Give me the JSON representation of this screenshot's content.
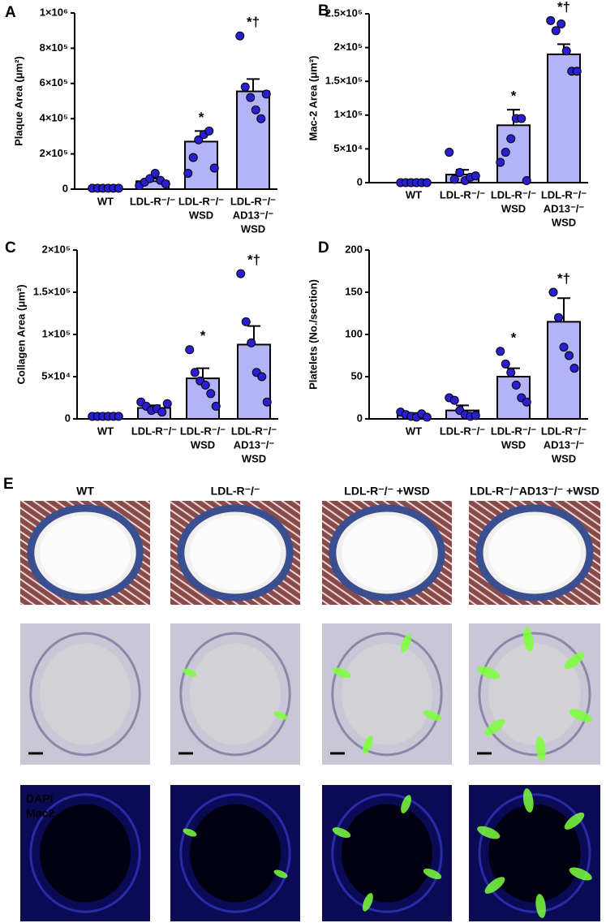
{
  "chart_data": [
    {
      "type": "bar",
      "panel": "A",
      "ylabel": "Plaque Area (μm²)",
      "categories": [
        [
          "WT"
        ],
        [
          "LDL-R⁻/⁻"
        ],
        [
          "LDL-R⁻/⁻",
          "WSD"
        ],
        [
          "LDL-R⁻/⁻",
          "AD13⁻/⁻",
          "WSD"
        ]
      ],
      "values": [
        5000,
        45000,
        270000,
        555000
      ],
      "errors": [
        3000,
        15000,
        60000,
        70000
      ],
      "points": [
        [
          5000,
          5000,
          5000,
          5000,
          5000,
          5000
        ],
        [
          20000,
          40000,
          60000,
          90000,
          50000,
          30000
        ],
        [
          90000,
          180000,
          280000,
          310000,
          330000,
          120000
        ],
        [
          870000,
          580000,
          520000,
          450000,
          400000,
          540000
        ]
      ],
      "annotations": [
        null,
        null,
        "*",
        "*†"
      ],
      "color": "#b3b3f5",
      "point_color": "#2a1fd0",
      "ylim": [
        0,
        1000000
      ],
      "yticks": [
        0,
        {
          "value": 200000,
          "label": "2×10⁵"
        },
        {
          "value": 400000,
          "label": "4×10⁵"
        },
        {
          "value": 600000,
          "label": "6×10⁵"
        },
        {
          "value": 800000,
          "label": "8×10⁵"
        },
        {
          "value": 1000000,
          "label": "1×10⁶"
        }
      ]
    },
    {
      "type": "bar",
      "panel": "B",
      "ylabel": "Mac-2 Area (μm²)",
      "categories": [
        [
          "WT"
        ],
        [
          "LDL-R⁻/⁻"
        ],
        [
          "LDL-R⁻/⁻",
          "WSD"
        ],
        [
          "LDL-R⁻/⁻",
          "AD13⁻/⁻",
          "WSD"
        ]
      ],
      "values": [
        1000,
        12000,
        85000,
        190000
      ],
      "errors": [
        500,
        7000,
        23000,
        15000
      ],
      "points": [
        [
          0,
          0,
          0,
          0,
          0,
          0
        ],
        [
          45000,
          5000,
          15000,
          3000,
          8000,
          10000
        ],
        [
          30000,
          45000,
          65000,
          95000,
          95000,
          3000
        ],
        [
          240000,
          225000,
          235000,
          195000,
          165000,
          165000
        ]
      ],
      "annotations": [
        null,
        null,
        "*",
        "*†"
      ],
      "color": "#b3b3f5",
      "point_color": "#2a1fd0",
      "ylim": [
        0,
        250000
      ],
      "yticks": [
        0,
        {
          "value": 50000,
          "label": "5×10⁴"
        },
        {
          "value": 100000,
          "label": "1×10⁵"
        },
        {
          "value": 150000,
          "label": "1.5×10⁵"
        },
        {
          "value": 200000,
          "label": "2×10⁵"
        },
        {
          "value": 250000,
          "label": "2.5×10⁵"
        }
      ]
    },
    {
      "type": "bar",
      "panel": "C",
      "ylabel": "Collagen Area  (μm²)",
      "categories": [
        [
          "WT"
        ],
        [
          "LDL-R⁻/⁻"
        ],
        [
          "LDL-R⁻/⁻",
          "WSD"
        ],
        [
          "LDL-R⁻/⁻",
          "AD13⁻/⁻",
          "WSD"
        ]
      ],
      "values": [
        3000,
        13000,
        48000,
        88000
      ],
      "errors": [
        500,
        3000,
        12000,
        22000
      ],
      "points": [
        [
          3000,
          3000,
          3000,
          3000,
          3000,
          3000
        ],
        [
          20000,
          15000,
          10000,
          12000,
          8000,
          18000
        ],
        [
          82000,
          55000,
          45000,
          40000,
          30000,
          15000
        ],
        [
          172000,
          115000,
          90000,
          55000,
          50000,
          20000
        ]
      ],
      "annotations": [
        null,
        null,
        "*",
        "*†"
      ],
      "color": "#b3b3f5",
      "point_color": "#2a1fd0",
      "ylim": [
        0,
        200000
      ],
      "yticks": [
        0,
        {
          "value": 50000,
          "label": "5×10⁴"
        },
        {
          "value": 100000,
          "label": "1×10⁵"
        },
        {
          "value": 150000,
          "label": "1.5×10⁵"
        },
        {
          "value": 200000,
          "label": "2×10⁵"
        }
      ]
    },
    {
      "type": "bar",
      "panel": "D",
      "ylabel": "Platelets (No./section)",
      "categories": [
        [
          "WT"
        ],
        [
          "LDL-R⁻/⁻"
        ],
        [
          "LDL-R⁻/⁻",
          "WSD"
        ],
        [
          "LDL-R⁻/⁻",
          "AD13⁻/⁻",
          "WSD"
        ]
      ],
      "values": [
        4,
        10,
        50,
        115
      ],
      "errors": [
        3,
        6,
        10,
        28
      ],
      "points": [
        [
          8,
          5,
          3,
          2,
          6,
          2
        ],
        [
          25,
          22,
          10,
          5,
          3,
          4
        ],
        [
          80,
          65,
          55,
          40,
          25,
          20
        ],
        [
          150,
          120,
          85,
          75,
          60
        ]
      ],
      "annotations": [
        null,
        null,
        "*",
        "*†"
      ],
      "color": "#b3b3f5",
      "point_color": "#2a1fd0",
      "ylim": [
        0,
        200
      ],
      "yticks": [
        0,
        50,
        100,
        150,
        200
      ]
    }
  ],
  "panel_e": {
    "label": "E",
    "columns": [
      "WT",
      "LDL-R⁻/⁻",
      "LDL-R⁻/⁻ +WSD",
      "LDL-R⁻/⁻AD13⁻/⁻ +WSD"
    ],
    "legend": [
      "DAPI",
      "Mac2"
    ]
  }
}
